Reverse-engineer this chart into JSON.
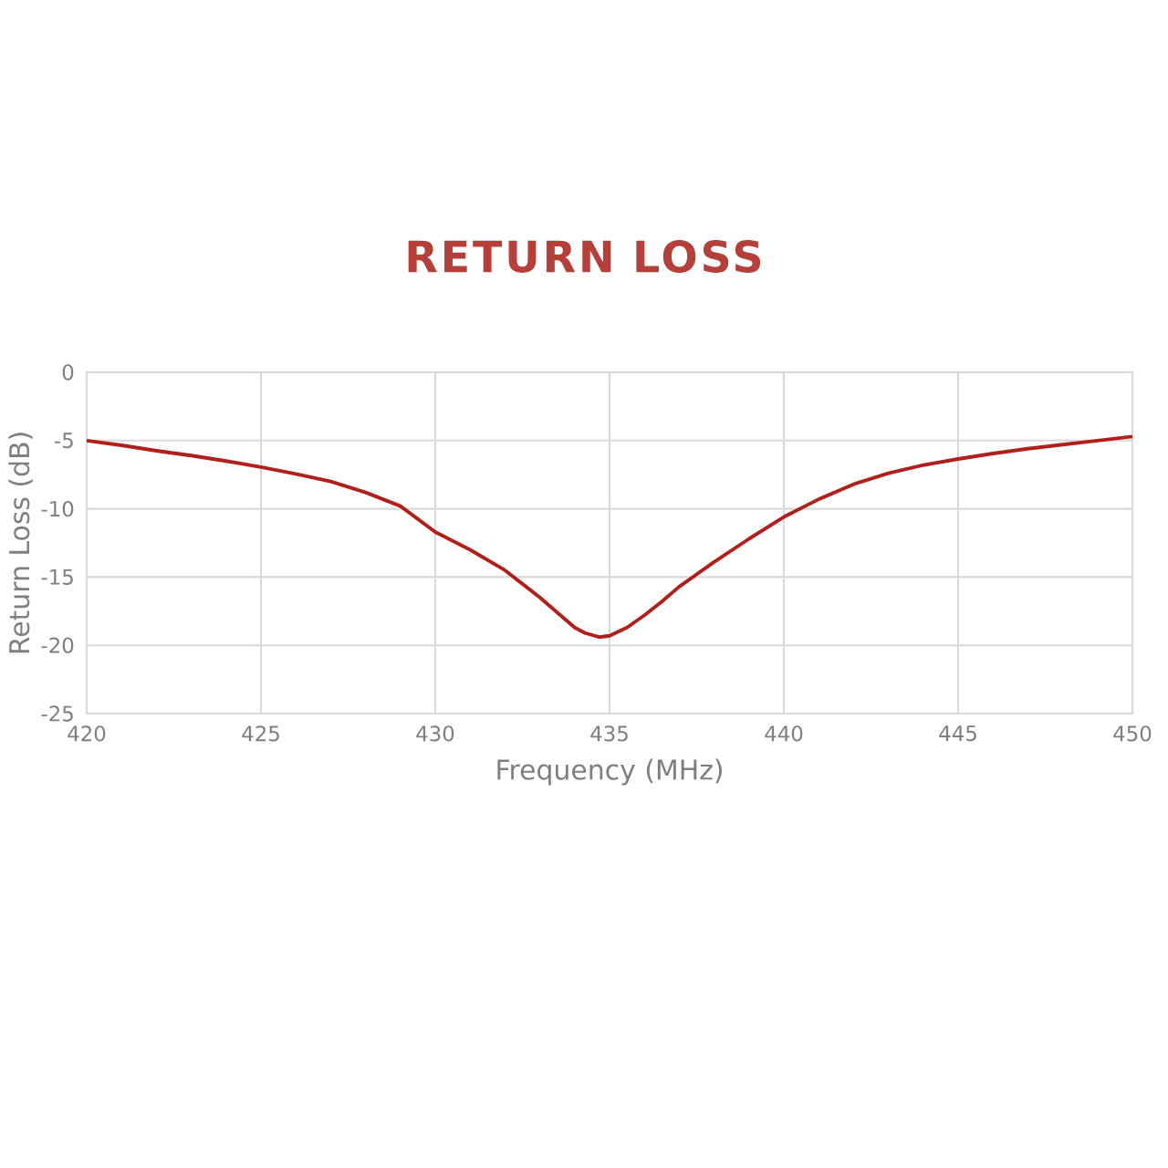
{
  "chart_data": {
    "type": "line",
    "title": "RETURN LOSS",
    "xlabel": "Frequency (MHz)",
    "ylabel": "Return Loss (dB)",
    "x": [
      420,
      421,
      422,
      423,
      424,
      425,
      426,
      427,
      428,
      429,
      430,
      431,
      432,
      432.5,
      433,
      433.5,
      434,
      434.3,
      434.7,
      435,
      435.5,
      436,
      436.5,
      437,
      438,
      439,
      440,
      441,
      442,
      443,
      444,
      445,
      446,
      447,
      448,
      449,
      450
    ],
    "series": [
      {
        "color": "#b01f1a",
        "values": [
          -5.0,
          -5.35,
          -5.75,
          -6.1,
          -6.5,
          -6.95,
          -7.45,
          -8.0,
          -8.8,
          -9.8,
          -11.7,
          -13.0,
          -14.5,
          -15.5,
          -16.5,
          -17.6,
          -18.7,
          -19.1,
          -19.4,
          -19.3,
          -18.7,
          -17.8,
          -16.8,
          -15.7,
          -13.9,
          -12.2,
          -10.6,
          -9.3,
          -8.2,
          -7.4,
          -6.8,
          -6.35,
          -5.95,
          -5.6,
          -5.3,
          -5.0,
          -4.7
        ]
      }
    ],
    "xlim": [
      420,
      450
    ],
    "ylim": [
      -25,
      0
    ],
    "xticks": [
      420,
      425,
      430,
      435,
      440,
      445,
      450
    ],
    "yticks": [
      -25,
      -20,
      -15,
      -10,
      -5,
      0
    ],
    "grid": true,
    "marker": "none",
    "line_style": "solid"
  }
}
